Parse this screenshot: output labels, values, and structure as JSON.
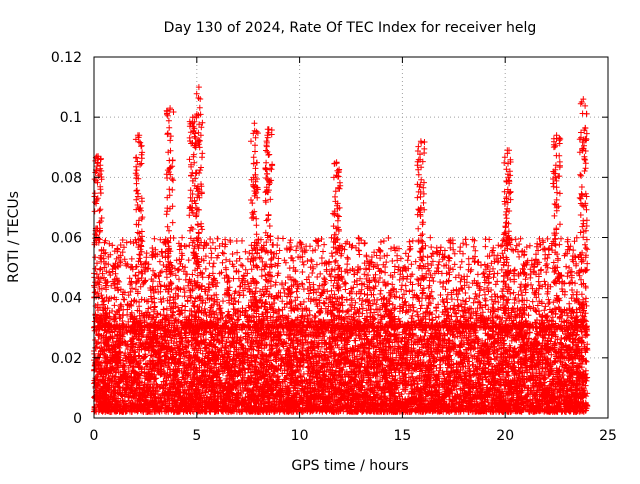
{
  "chart_data": {
    "type": "scatter",
    "title": "Day 130 of 2024, Rate Of TEC Index for receiver helg",
    "xlabel": "GPS time / hours",
    "ylabel": "ROTI / TECUs",
    "xlim": [
      0,
      25
    ],
    "ylim": [
      0,
      0.12
    ],
    "x_ticks": [
      0,
      5,
      10,
      15,
      20,
      25
    ],
    "x_tick_labels": [
      "0",
      "5",
      "10",
      "15",
      "20",
      "25"
    ],
    "y_ticks": [
      0,
      0.02,
      0.04,
      0.06,
      0.08,
      0.1,
      0.12
    ],
    "y_tick_labels": [
      "0",
      "0.02",
      "0.04",
      "0.06",
      "0.08",
      "0.1",
      "0.12"
    ],
    "grid": true,
    "marker": "+",
    "marker_color": "#ff0000",
    "series": [
      {
        "name": "ROTI",
        "description_envelope": {
          "x_range_hours": [
            0,
            24
          ],
          "dense_band": [
            0.002,
            0.03
          ],
          "typical_upper": 0.06,
          "peaks": [
            {
              "x": 0.2,
              "y": 0.087
            },
            {
              "x": 2.2,
              "y": 0.094
            },
            {
              "x": 3.7,
              "y": 0.103
            },
            {
              "x": 4.8,
              "y": 0.1
            },
            {
              "x": 5.1,
              "y": 0.11
            },
            {
              "x": 7.8,
              "y": 0.098
            },
            {
              "x": 8.5,
              "y": 0.096
            },
            {
              "x": 11.8,
              "y": 0.085
            },
            {
              "x": 15.9,
              "y": 0.092
            },
            {
              "x": 20.1,
              "y": 0.089
            },
            {
              "x": 22.5,
              "y": 0.094
            },
            {
              "x": 23.8,
              "y": 0.106
            }
          ]
        }
      }
    ]
  }
}
